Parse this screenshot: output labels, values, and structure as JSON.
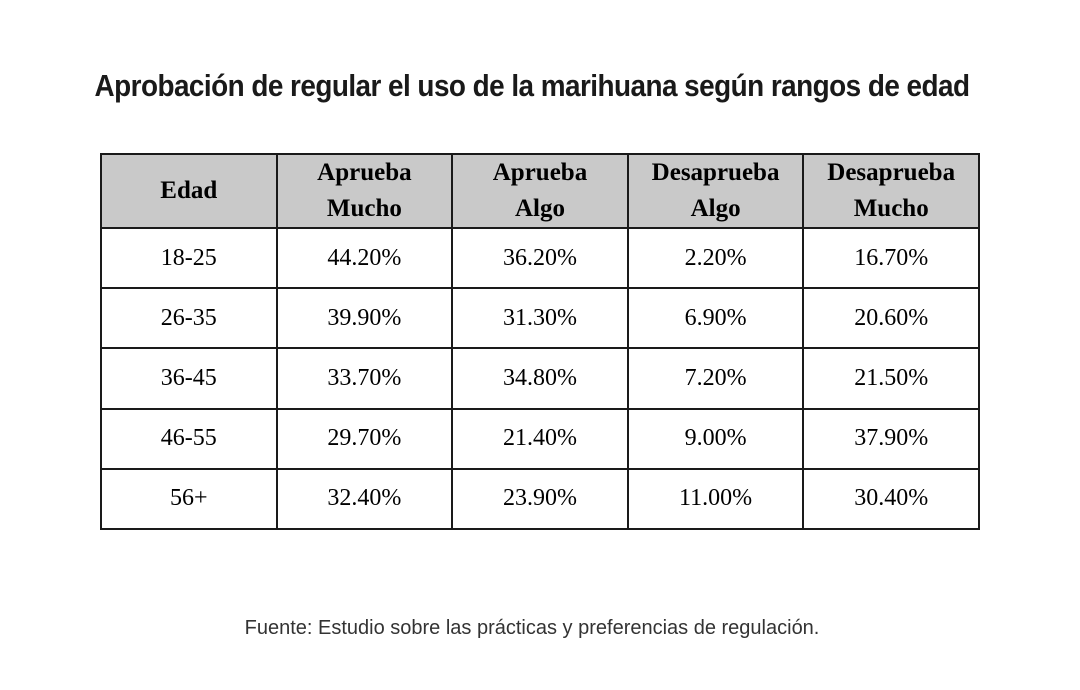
{
  "chart_data": {
    "type": "table",
    "title": "Aprobación de regular el uso de la marihuana según rangos de edad",
    "columns": [
      {
        "line1": "Edad",
        "line2": ""
      },
      {
        "line1": "Aprueba",
        "line2": "Mucho"
      },
      {
        "line1": "Aprueba",
        "line2": "Algo"
      },
      {
        "line1": "Desaprueba",
        "line2": "Algo"
      },
      {
        "line1": "Desaprueba",
        "line2": "Mucho"
      }
    ],
    "rows": [
      [
        "18-25",
        "44.20%",
        "36.20%",
        "2.20%",
        "16.70%"
      ],
      [
        "26-35",
        "39.90%",
        "31.30%",
        "6.90%",
        "20.60%"
      ],
      [
        "36-45",
        "33.70%",
        "34.80%",
        "7.20%",
        "21.50%"
      ],
      [
        "46-55",
        "29.70%",
        "21.40%",
        "9.00%",
        "37.90%"
      ],
      [
        "56+",
        "32.40%",
        "23.90%",
        "11.00%",
        "30.40%"
      ]
    ],
    "source": "Fuente: Estudio sobre las prácticas y preferencias de regulación."
  },
  "colors": {
    "header_bg": "#c9c9c9",
    "border": "#1a1a1a",
    "text": "#000000"
  }
}
